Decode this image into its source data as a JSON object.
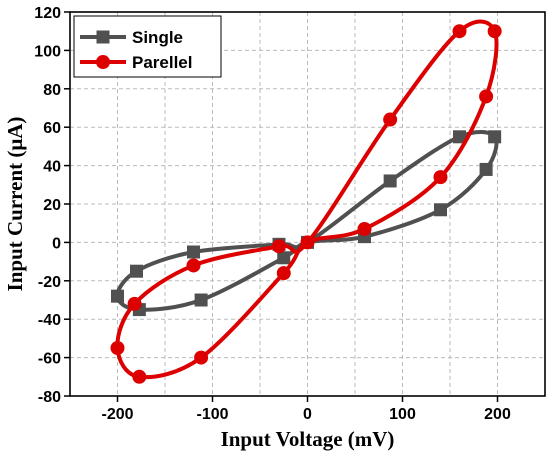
{
  "chart_data": {
    "type": "line",
    "title": "",
    "xlabel": "Input Voltage (mV)",
    "ylabel": "Input Current (μA)",
    "xlim": [
      -250,
      250
    ],
    "ylim": [
      -80,
      120
    ],
    "xticks": [
      -200,
      -100,
      0,
      100,
      200
    ],
    "yticks": [
      -80,
      -60,
      -40,
      -20,
      0,
      20,
      40,
      60,
      80,
      100,
      120
    ],
    "grid": true,
    "legend_position": "top-left",
    "series": [
      {
        "name": "Single",
        "color": "#505050",
        "marker": "square",
        "points": [
          [
            0,
            0
          ],
          [
            60,
            3
          ],
          [
            140,
            17
          ],
          [
            188,
            38
          ],
          [
            197,
            55
          ],
          [
            160,
            55
          ],
          [
            87,
            32
          ],
          [
            0,
            0
          ],
          [
            -30,
            -1
          ],
          [
            -120,
            -5
          ],
          [
            -180,
            -15
          ],
          [
            -200,
            -28
          ],
          [
            -177,
            -35
          ],
          [
            -112,
            -30
          ],
          [
            -25,
            -8
          ],
          [
            0,
            0
          ]
        ],
        "markers": [
          [
            0,
            0
          ],
          [
            60,
            3
          ],
          [
            140,
            17
          ],
          [
            188,
            38
          ],
          [
            197,
            55
          ],
          [
            160,
            55
          ],
          [
            87,
            32
          ],
          [
            -30,
            -1
          ],
          [
            -120,
            -5
          ],
          [
            -180,
            -15
          ],
          [
            -200,
            -28
          ],
          [
            -177,
            -35
          ],
          [
            -112,
            -30
          ],
          [
            -25,
            -8
          ]
        ]
      },
      {
        "name": "Parellel",
        "color": "#dd0000",
        "marker": "circle",
        "points": [
          [
            0,
            0
          ],
          [
            60,
            7
          ],
          [
            140,
            34
          ],
          [
            188,
            76
          ],
          [
            197,
            110
          ],
          [
            160,
            110
          ],
          [
            87,
            64
          ],
          [
            0,
            0
          ],
          [
            -30,
            -2
          ],
          [
            -120,
            -12
          ],
          [
            -182,
            -32
          ],
          [
            -200,
            -55
          ],
          [
            -177,
            -70
          ],
          [
            -112,
            -60
          ],
          [
            -25,
            -16
          ],
          [
            0,
            0
          ]
        ],
        "markers": [
          [
            0,
            0
          ],
          [
            60,
            7
          ],
          [
            140,
            34
          ],
          [
            188,
            76
          ],
          [
            197,
            110
          ],
          [
            160,
            110
          ],
          [
            87,
            64
          ],
          [
            -30,
            -2
          ],
          [
            -120,
            -12
          ],
          [
            -182,
            -32
          ],
          [
            -200,
            -55
          ],
          [
            -177,
            -70
          ],
          [
            -112,
            -60
          ],
          [
            -25,
            -16
          ]
        ]
      }
    ]
  }
}
